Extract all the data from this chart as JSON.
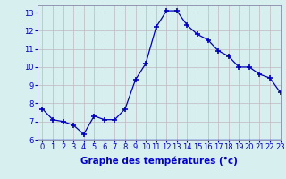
{
  "x": [
    0,
    1,
    2,
    3,
    4,
    5,
    6,
    7,
    8,
    9,
    10,
    11,
    12,
    13,
    14,
    15,
    16,
    17,
    18,
    19,
    20,
    21,
    22,
    23
  ],
  "y": [
    7.7,
    7.1,
    7.0,
    6.8,
    6.3,
    7.3,
    7.1,
    7.1,
    7.7,
    9.3,
    10.2,
    12.2,
    13.1,
    13.1,
    12.3,
    11.8,
    11.5,
    10.9,
    10.6,
    10.0,
    10.0,
    9.6,
    9.4,
    8.6
  ],
  "xlabel": "Graphe des températures (°c)",
  "xlim": [
    -0.5,
    23
  ],
  "ylim": [
    6,
    13.4
  ],
  "yticks": [
    6,
    7,
    8,
    9,
    10,
    11,
    12,
    13
  ],
  "xticks": [
    0,
    1,
    2,
    3,
    4,
    5,
    6,
    7,
    8,
    9,
    10,
    11,
    12,
    13,
    14,
    15,
    16,
    17,
    18,
    19,
    20,
    21,
    22,
    23
  ],
  "line_color": "#0000bb",
  "marker": "+",
  "bg_color": "#d8eff0",
  "grid_color": "#b0c8c8",
  "xlabel_color": "#0000cc",
  "tick_color": "#0000cc",
  "label_fontsize": 7.5,
  "tick_fontsize": 6.0
}
